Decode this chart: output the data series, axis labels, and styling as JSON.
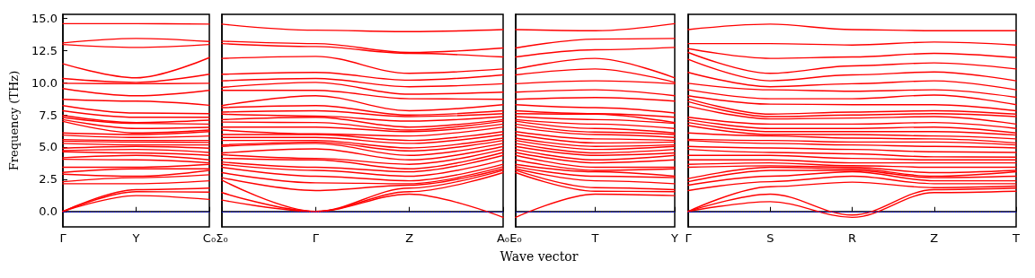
{
  "chart_data": [
    {
      "type": "line",
      "ylabel": "Frequency (THz)",
      "color": "#ff0000",
      "marker": "none",
      "grid": false,
      "categories": [
        "Γ",
        "Y",
        "C₀"
      ],
      "ylim": [
        -1.2,
        15.3
      ],
      "yticks": [
        {
          "value": 0,
          "label": "0.0"
        },
        {
          "value": 2.5,
          "label": "2.5"
        },
        {
          "value": 5,
          "label": "5.0"
        },
        {
          "value": 7.5,
          "label": "7.5"
        },
        {
          "value": 10,
          "label": "10.0"
        },
        {
          "value": 12.5,
          "label": "12.5"
        },
        {
          "value": 15,
          "label": "15.0"
        }
      ],
      "ref_lines": [
        {
          "axis": "y",
          "value": 0,
          "color": "#0000ff",
          "line_style": "dotted"
        }
      ],
      "series": [
        {
          "values": [
            0,
            1.23,
            0.93
          ]
        },
        {
          "values": [
            0,
            1.53,
            1.5
          ]
        },
        {
          "values": [
            0,
            1.69,
            1.81
          ]
        },
        {
          "values": [
            2.15,
            2.15,
            2.38
          ]
        },
        {
          "values": [
            2.31,
            2.62,
            2.85
          ]
        },
        {
          "values": [
            2.89,
            2.73,
            3.19
          ]
        },
        {
          "values": [
            3.03,
            3.31,
            3.31
          ]
        },
        {
          "values": [
            3.43,
            3.43,
            3.66
          ]
        },
        {
          "values": [
            4.05,
            4.0,
            3.77
          ]
        },
        {
          "values": [
            4.17,
            4.35,
            4.0
          ]
        },
        {
          "values": [
            4.63,
            4.54,
            4.35
          ]
        },
        {
          "values": [
            4.72,
            4.81,
            4.58
          ]
        },
        {
          "values": [
            4.91,
            5.05,
            4.91
          ]
        },
        {
          "values": [
            5.28,
            5.16,
            5.16
          ]
        },
        {
          "values": [
            5.46,
            5.39,
            5.35
          ]
        },
        {
          "values": [
            5.58,
            5.51,
            5.51
          ]
        },
        {
          "values": [
            5.93,
            5.74,
            5.86
          ]
        },
        {
          "values": [
            6.09,
            5.97,
            6.2
          ]
        },
        {
          "values": [
            6.99,
            6.09,
            6.32
          ]
        },
        {
          "values": [
            7.13,
            6.44,
            6.53
          ]
        },
        {
          "values": [
            7.29,
            6.83,
            6.78
          ]
        },
        {
          "values": [
            7.45,
            6.9,
            7.08
          ]
        },
        {
          "values": [
            7.82,
            7.31,
            7.31
          ]
        },
        {
          "values": [
            8.22,
            7.64,
            7.59
          ]
        },
        {
          "values": [
            8.7,
            8.56,
            8.24
          ]
        },
        {
          "values": [
            9.54,
            8.98,
            9.4
          ]
        },
        {
          "values": [
            9.95,
            9.91,
            9.95
          ]
        },
        {
          "values": [
            10.32,
            10.02,
            10.65
          ]
        },
        {
          "values": [
            11.46,
            10.37,
            11.94
          ]
        },
        {
          "values": [
            12.96,
            12.73,
            12.96
          ]
        },
        {
          "values": [
            13.08,
            13.43,
            13.19
          ]
        },
        {
          "values": [
            14.58,
            14.58,
            14.54
          ]
        }
      ]
    },
    {
      "type": "line",
      "color": "#ff0000",
      "marker": "none",
      "grid": false,
      "tick_labels": "x",
      "categories": [
        "Σ₀",
        "Γ",
        "Z",
        "A₀"
      ],
      "ylim": [
        -1.2,
        15.3
      ],
      "ref_lines": [
        {
          "axis": "y",
          "value": 0,
          "color": "#0000ff",
          "line_style": "dotted"
        }
      ],
      "series": [
        {
          "values": [
            0.88,
            0,
            1.34,
            -0.46
          ]
        },
        {
          "values": [
            1.46,
            0,
            1.53,
            3.01
          ]
        },
        {
          "values": [
            2.43,
            0,
            1.81,
            3.19
          ]
        },
        {
          "values": [
            2.62,
            1.62,
            2.04,
            3.31
          ]
        },
        {
          "values": [
            3.01,
            2.22,
            2.15,
            3.47
          ]
        },
        {
          "values": [
            3.43,
            2.73,
            2.38,
            3.66
          ]
        },
        {
          "values": [
            3.66,
            3.19,
            2.73,
            4.0
          ]
        },
        {
          "values": [
            3.84,
            3.43,
            3.08,
            4.35
          ]
        },
        {
          "values": [
            4.12,
            4.0,
            3.31,
            4.58
          ]
        },
        {
          "values": [
            4.4,
            4.12,
            3.66,
            4.81
          ]
        },
        {
          "values": [
            4.54,
            4.86,
            4.0,
            5.05
          ]
        },
        {
          "values": [
            5.05,
            5.28,
            4.35,
            5.28
          ]
        },
        {
          "values": [
            5.16,
            5.39,
            4.7,
            5.51
          ]
        },
        {
          "values": [
            5.51,
            5.51,
            4.93,
            5.69
          ]
        },
        {
          "values": [
            5.74,
            5.74,
            5.28,
            5.97
          ]
        },
        {
          "values": [
            5.97,
            5.97,
            5.51,
            6.2
          ]
        },
        {
          "values": [
            6.32,
            6.02,
            5.86,
            6.55
          ]
        },
        {
          "values": [
            6.55,
            6.55,
            6.2,
            6.78
          ]
        },
        {
          "values": [
            6.94,
            6.9,
            6.32,
            7.01
          ]
        },
        {
          "values": [
            7.13,
            7.31,
            6.55,
            7.13
          ]
        },
        {
          "values": [
            7.55,
            7.41,
            7.01,
            7.36
          ]
        },
        {
          "values": [
            7.71,
            7.82,
            7.36,
            7.59
          ]
        },
        {
          "values": [
            8.06,
            8.22,
            7.48,
            7.82
          ]
        },
        {
          "values": [
            8.22,
            8.98,
            7.82,
            8.29
          ]
        },
        {
          "values": [
            9.4,
            9.4,
            8.75,
            8.7
          ]
        },
        {
          "values": [
            9.63,
            10.02,
            9.1,
            9.26
          ]
        },
        {
          "values": [
            10.14,
            10.32,
            9.68,
            9.91
          ]
        },
        {
          "values": [
            10.65,
            10.79,
            10.19,
            10.6
          ]
        },
        {
          "values": [
            11.88,
            12.04,
            10.72,
            11.06
          ]
        },
        {
          "values": [
            13.03,
            12.8,
            12.27,
            11.99
          ]
        },
        {
          "values": [
            13.22,
            13.03,
            12.34,
            12.69
          ]
        },
        {
          "values": [
            14.54,
            14.07,
            13.96,
            14.12
          ]
        }
      ]
    },
    {
      "type": "line",
      "xlabel": "Wave vector",
      "color": "#ff0000",
      "marker": "none",
      "grid": false,
      "tick_labels": "x",
      "categories": [
        "E₀",
        "T",
        "Y"
      ],
      "ylim": [
        -1.2,
        15.3
      ],
      "ref_lines": [
        {
          "axis": "y",
          "value": 0,
          "color": "#0000ff",
          "line_style": "dotted"
        }
      ],
      "series": [
        {
          "values": [
            -0.46,
            1.34,
            1.23
          ]
        },
        {
          "values": [
            3.01,
            1.57,
            1.53
          ]
        },
        {
          "values": [
            3.19,
            1.85,
            1.69
          ]
        },
        {
          "values": [
            3.31,
            2.38,
            2.15
          ]
        },
        {
          "values": [
            3.47,
            2.73,
            2.62
          ]
        },
        {
          "values": [
            3.66,
            3.08,
            2.73
          ]
        },
        {
          "values": [
            4.0,
            3.19,
            3.31
          ]
        },
        {
          "values": [
            4.35,
            3.43,
            3.43
          ]
        },
        {
          "values": [
            4.58,
            3.77,
            4.0
          ]
        },
        {
          "values": [
            4.81,
            4.0,
            4.35
          ]
        },
        {
          "values": [
            5.05,
            4.35,
            4.54
          ]
        },
        {
          "values": [
            5.28,
            4.54,
            4.81
          ]
        },
        {
          "values": [
            5.51,
            4.81,
            5.05
          ]
        },
        {
          "values": [
            5.69,
            5.05,
            5.16
          ]
        },
        {
          "values": [
            5.97,
            5.32,
            5.39
          ]
        },
        {
          "values": [
            6.2,
            5.63,
            5.51
          ]
        },
        {
          "values": [
            6.55,
            5.97,
            5.74
          ]
        },
        {
          "values": [
            6.78,
            6.16,
            5.97
          ]
        },
        {
          "values": [
            7.01,
            6.44,
            6.09
          ]
        },
        {
          "values": [
            7.13,
            6.78,
            6.44
          ]
        },
        {
          "values": [
            7.36,
            7.13,
            6.83
          ]
        },
        {
          "values": [
            7.59,
            7.55,
            6.9
          ]
        },
        {
          "values": [
            7.82,
            7.59,
            7.31
          ]
        },
        {
          "values": [
            8.29,
            8.06,
            7.64
          ]
        },
        {
          "values": [
            8.7,
            8.84,
            8.56
          ]
        },
        {
          "values": [
            9.26,
            9.44,
            8.98
          ]
        },
        {
          "values": [
            9.91,
            10.14,
            9.91
          ]
        },
        {
          "values": [
            10.6,
            11.06,
            10.02
          ]
        },
        {
          "values": [
            11.06,
            11.88,
            10.37
          ]
        },
        {
          "values": [
            11.99,
            12.55,
            12.73
          ]
        },
        {
          "values": [
            12.69,
            13.38,
            13.43
          ]
        },
        {
          "values": [
            14.12,
            14.03,
            14.58
          ]
        }
      ]
    },
    {
      "type": "line",
      "color": "#ff0000",
      "marker": "none",
      "grid": false,
      "tick_labels": "x",
      "categories": [
        "Γ",
        "S",
        "R",
        "Z",
        "T"
      ],
      "ylim": [
        -1.2,
        15.3
      ],
      "ref_lines": [
        {
          "axis": "y",
          "value": 0,
          "color": "#0000ff",
          "line_style": "dotted"
        }
      ],
      "series": [
        {
          "values": [
            0,
            0.76,
            -0.46,
            1.46,
            1.57
          ]
        },
        {
          "values": [
            0,
            1.34,
            -0.28,
            1.69,
            1.81
          ]
        },
        {
          "values": [
            0,
            1.92,
            2.27,
            1.85,
            1.97
          ]
        },
        {
          "values": [
            1.62,
            2.31,
            2.73,
            2.15,
            2.15
          ]
        },
        {
          "values": [
            2.04,
            2.73,
            3.08,
            2.38,
            2.38
          ]
        },
        {
          "values": [
            2.31,
            3.19,
            3.19,
            2.62,
            2.73
          ]
        },
        {
          "values": [
            2.55,
            3.43,
            3.31,
            2.73,
            3.08
          ]
        },
        {
          "values": [
            3.43,
            3.54,
            3.43,
            3.01,
            3.19
          ]
        },
        {
          "values": [
            3.66,
            3.77,
            3.55,
            3.43,
            3.43
          ]
        },
        {
          "values": [
            4.0,
            4.0,
            3.77,
            3.77,
            3.77
          ]
        },
        {
          "values": [
            4.35,
            4.35,
            4.12,
            4.0,
            4.0
          ]
        },
        {
          "values": [
            4.81,
            4.58,
            4.47,
            4.24,
            4.21
          ]
        },
        {
          "values": [
            5.05,
            4.93,
            4.81,
            4.63,
            4.58
          ]
        },
        {
          "values": [
            5.51,
            5.28,
            5.16,
            5.05,
            4.93
          ]
        },
        {
          "values": [
            5.6,
            5.51,
            5.39,
            5.39,
            5.16
          ]
        },
        {
          "values": [
            6.09,
            5.86,
            5.69,
            5.63,
            5.32
          ]
        },
        {
          "values": [
            6.67,
            5.97,
            5.97,
            5.86,
            5.63
          ]
        },
        {
          "values": [
            6.9,
            6.2,
            6.2,
            6.2,
            5.93
          ]
        },
        {
          "values": [
            7.13,
            6.44,
            6.44,
            6.55,
            6.09
          ]
        },
        {
          "values": [
            7.31,
            6.78,
            6.78,
            6.9,
            6.44
          ]
        },
        {
          "values": [
            8.17,
            7.18,
            7.25,
            7.36,
            6.78
          ]
        },
        {
          "values": [
            8.52,
            7.36,
            7.48,
            7.59,
            7.36
          ]
        },
        {
          "values": [
            8.75,
            7.55,
            7.71,
            7.82,
            7.55
          ]
        },
        {
          "values": [
            8.98,
            8.33,
            8.29,
            8.29,
            7.82
          ]
        },
        {
          "values": [
            9.44,
            8.75,
            8.75,
            9.03,
            8.29
          ]
        },
        {
          "values": [
            9.95,
            9.44,
            9.33,
            9.44,
            8.86
          ]
        },
        {
          "values": [
            10.79,
            9.68,
            9.91,
            10.14,
            9.44
          ]
        },
        {
          "values": [
            11.81,
            10.14,
            10.6,
            10.83,
            10.14
          ]
        },
        {
          "values": [
            12.34,
            10.72,
            11.3,
            11.53,
            11.06
          ]
        },
        {
          "values": [
            12.64,
            11.88,
            11.99,
            12.27,
            11.94
          ]
        },
        {
          "values": [
            13.03,
            13.03,
            12.92,
            13.15,
            12.92
          ]
        },
        {
          "values": [
            14.12,
            14.54,
            14.12,
            14.03,
            14.03
          ]
        }
      ]
    }
  ]
}
